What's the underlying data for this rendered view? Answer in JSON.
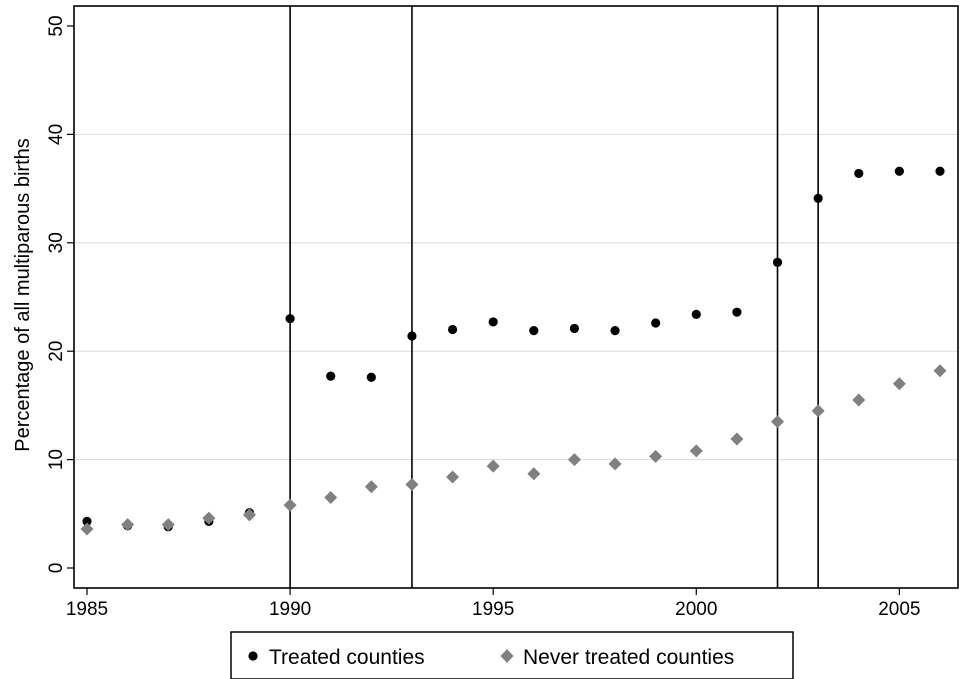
{
  "chart_data": {
    "type": "scatter",
    "title": "",
    "xlabel": "",
    "ylabel": "Percentage of all multiparous births",
    "xlim": [
      1985,
      2006
    ],
    "ylim": [
      0,
      50
    ],
    "x_ticks": [
      1985,
      1990,
      1995,
      2000,
      2005
    ],
    "y_ticks": [
      0,
      10,
      20,
      30,
      40,
      50
    ],
    "grid": "horizontal",
    "vertical_lines": [
      1990,
      1993,
      2002,
      2003
    ],
    "legend_position": "bottom",
    "series": [
      {
        "name": "Treated counties",
        "marker": "circle",
        "color": "#000000",
        "x": [
          1985,
          1986,
          1987,
          1988,
          1989,
          1990,
          1991,
          1992,
          1993,
          1994,
          1995,
          1996,
          1997,
          1998,
          1999,
          2000,
          2001,
          2002,
          2003,
          2004,
          2005,
          2006
        ],
        "y": [
          4.3,
          3.9,
          3.8,
          4.3,
          5.1,
          23.0,
          17.7,
          17.6,
          21.4,
          22.0,
          22.7,
          21.9,
          22.1,
          21.9,
          22.6,
          23.4,
          23.6,
          28.2,
          34.1,
          36.4,
          36.6,
          36.6
        ]
      },
      {
        "name": "Never treated counties",
        "marker": "diamond",
        "color": "#808080",
        "x": [
          1985,
          1986,
          1987,
          1988,
          1989,
          1990,
          1991,
          1992,
          1993,
          1994,
          1995,
          1996,
          1997,
          1998,
          1999,
          2000,
          2001,
          2002,
          2003,
          2004,
          2005,
          2006
        ],
        "y": [
          3.6,
          4.0,
          4.0,
          4.6,
          4.9,
          5.8,
          6.5,
          7.5,
          7.7,
          8.4,
          9.4,
          8.7,
          10.0,
          9.6,
          10.3,
          10.8,
          11.9,
          13.5,
          14.5,
          15.5,
          17.0,
          18.2
        ]
      }
    ]
  }
}
